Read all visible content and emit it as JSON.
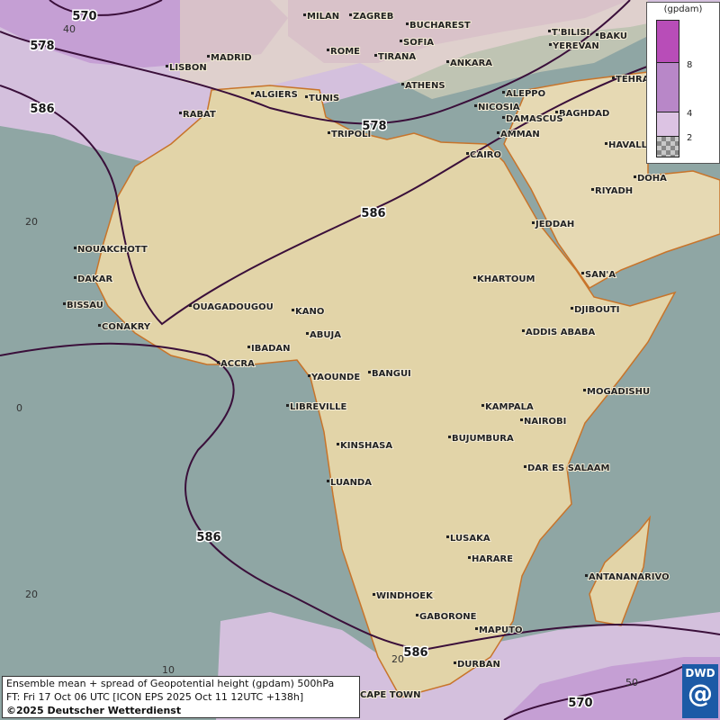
{
  "caption": {
    "line1": "Ensemble mean + spread of Geopotential height (gpdam) 500hPa",
    "line2": "FT: Fri 17 Oct 06 UTC [ICON EPS 2025 Oct 11 12UTC +138h]",
    "line3": "©2025 Deutscher Wetterdienst"
  },
  "legend": {
    "unit": "(gpdam)",
    "ticks": [
      "8",
      "4",
      "2"
    ],
    "colors": [
      "#b84db8",
      "#b887c8",
      "#dcc3e3",
      "#a0a0a0"
    ]
  },
  "logo": {
    "text": "DWD"
  },
  "colors": {
    "sea": "#8fa6a4",
    "land": "#e2d4a8",
    "spread_low": "#dcc3e3",
    "spread_mid": "#c7a0d6",
    "contour": "#3a0f3a"
  },
  "contour_labels": [
    "570",
    "578",
    "586",
    "578",
    "586",
    "586",
    "586",
    "570"
  ],
  "grid_labels": [
    "40",
    "20",
    "0",
    "20",
    "10",
    "20",
    "50"
  ],
  "cities": [
    "MILAN",
    "ZAGREB",
    "BUCHAREST",
    "T'BILISI",
    "BAKU",
    "ROME",
    "SOFIA",
    "YEREVAN",
    "MADRID",
    "TIRANA",
    "ANKARA",
    "LISBON",
    "ATHENS",
    "TEHRA",
    "ALGIERS",
    "TUNIS",
    "ALEPPO",
    "NICOSIA",
    "BAGHDAD",
    "RABAT",
    "TRIPOLI",
    "DAMASCUS",
    "AMMAN",
    "HAVALLI",
    "CAIRO",
    "DOHA",
    "RIYADH",
    "JEDDAH",
    "NOUAKCHOTT",
    "DAKAR",
    "KHARTOUM",
    "SAN'A",
    "BISSAU",
    "OUAGADOUGOU",
    "KANO",
    "DJIBOUTI",
    "CONAKRY",
    "ABUJA",
    "ADDIS ABABA",
    "IBADAN",
    "ACCRA",
    "YAOUNDE",
    "BANGUI",
    "MOGADISHU",
    "LIBREVILLE",
    "KAMPALA",
    "NAIROBI",
    "BUJUMBURA",
    "KINSHASA",
    "DAR ES SALAAM",
    "LUANDA",
    "LUSAKA",
    "HARARE",
    "ANTANANARIVO",
    "WINDHOEK",
    "GABORONE",
    "MAPUTO",
    "DURBAN",
    "CAPE TOWN"
  ]
}
